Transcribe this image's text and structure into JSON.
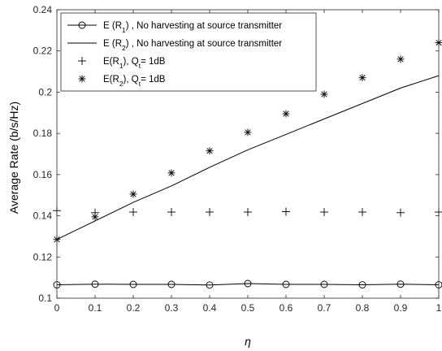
{
  "chart_data": {
    "type": "line",
    "xlabel": "η",
    "ylabel": "Average Rate (b/s/Hz)",
    "xlim": [
      0,
      1
    ],
    "ylim": [
      0.1,
      0.24
    ],
    "x_ticks": [
      "0",
      "0.1",
      "0.2",
      "0.3",
      "0.4",
      "0.5",
      "0.6",
      "0.7",
      "0.8",
      "0.9",
      "1"
    ],
    "y_ticks": [
      "0.1",
      "0.12",
      "0.14",
      "0.16",
      "0.18",
      "0.2",
      "0.22",
      "0.24"
    ],
    "grid": false,
    "legend_position": "top-left",
    "x": [
      0,
      0.1,
      0.2,
      0.3,
      0.4,
      0.5,
      0.6,
      0.7,
      0.8,
      0.9,
      1.0
    ],
    "series": [
      {
        "name": "E (R1) , No harvesting at source transmitter",
        "name_parts": {
          "pre": "E (R",
          "sub": "1",
          "post": ") , No harvesting at source transmitter"
        },
        "marker": "circle",
        "line": true,
        "color": "#000000",
        "values": [
          0.1065,
          0.1068,
          0.1067,
          0.1067,
          0.1064,
          0.1071,
          0.1067,
          0.1067,
          0.1065,
          0.1068,
          0.1065
        ]
      },
      {
        "name": "E (R2) , No harvesting at source transmitter",
        "name_parts": {
          "pre": "E (R",
          "sub": "2",
          "post": ") , No harvesting at source transmitter"
        },
        "marker": "none",
        "line": true,
        "color": "#000000",
        "values": [
          0.1285,
          0.1375,
          0.1465,
          0.1545,
          0.1635,
          0.172,
          0.1795,
          0.187,
          0.1945,
          0.202,
          0.208
        ]
      },
      {
        "name": "E(R1), Qt= 1dB",
        "name_parts": {
          "pre": "E(R",
          "sub": "1",
          "mid": "), Q",
          "sub2": "t",
          "post": "= 1dB"
        },
        "marker": "plus",
        "line": false,
        "color": "#000000",
        "values": [
          0.1425,
          0.1415,
          0.1418,
          0.1418,
          0.1418,
          0.1418,
          0.142,
          0.1418,
          0.1418,
          0.1415,
          0.1418
        ]
      },
      {
        "name": "E(R2), Qt= 1dB",
        "name_parts": {
          "pre": "E(R",
          "sub": "2",
          "mid": "), Q",
          "sub2": "t",
          "post": "= 1dB"
        },
        "marker": "asterisk",
        "line": false,
        "color": "#000000",
        "values": [
          0.1285,
          0.1395,
          0.1505,
          0.1608,
          0.1715,
          0.1805,
          0.1895,
          0.199,
          0.207,
          0.216,
          0.224
        ]
      }
    ]
  }
}
